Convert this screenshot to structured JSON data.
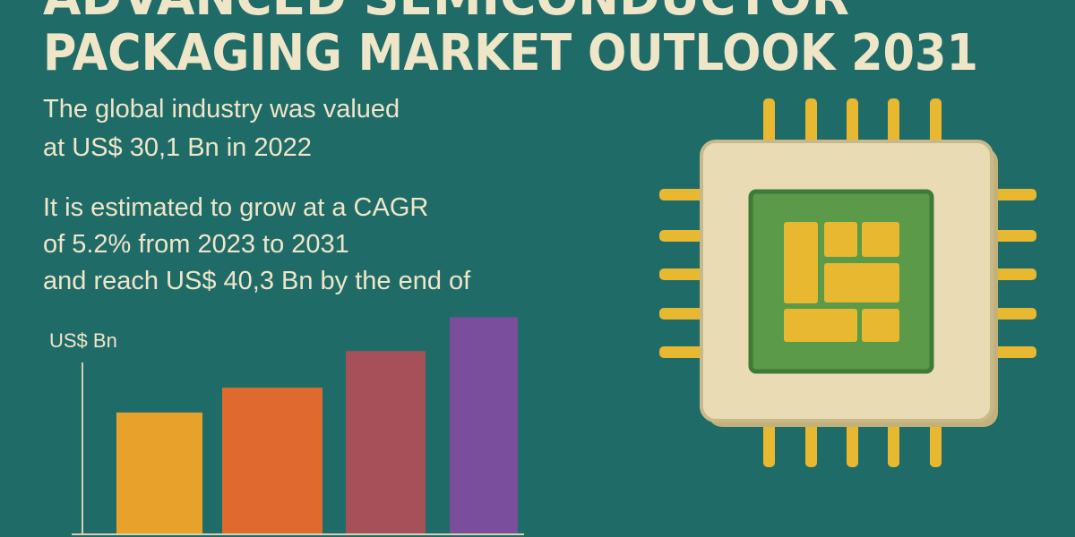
{
  "header": {
    "title_line1": "ADVANCED SEMICONDUCTOR",
    "title_line2": "PACKAGING MARKET OUTLOOK 2031"
  },
  "paragraphs": [
    [
      "The global industry was valued",
      "at US$ 30,1 Bn in 2022"
    ],
    [
      "It is estimated to grow at a CAGR",
      "of 5.2% from 2023 to 2031",
      "and reach US$ 40,3 Bn by the end of"
    ]
  ],
  "chart_data": {
    "type": "bar",
    "y_label": "US$ Bn",
    "categories": [
      null,
      null,
      null,
      null
    ],
    "values": [
      22.6,
      27.2,
      34,
      40.3
    ],
    "colors": [
      "#e8a22c",
      "#e06a2e",
      "#a8505a",
      "#7a4e9a"
    ],
    "ylim": [
      0,
      45
    ]
  }
}
